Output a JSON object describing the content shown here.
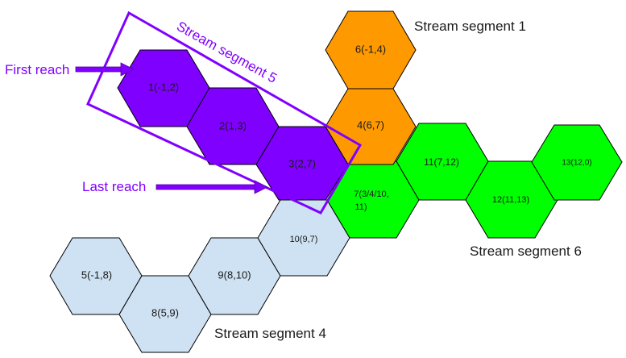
{
  "colors": {
    "purple": "#8000ff",
    "purple_dark": "#7a00e6",
    "orange": "#ff9900",
    "green": "#00ff00",
    "lightblue": "#cfe2f3",
    "stroke": "#000000"
  },
  "segments": {
    "seg1": "Stream segment 1",
    "seg4": "Stream segment 4",
    "seg5": "Stream segment 5",
    "seg6": "Stream segment 6"
  },
  "annotations": {
    "first_reach": "First reach",
    "last_reach": "Last reach"
  },
  "hexes": {
    "h1": "1(-1,2)",
    "h2": "2(1,3)",
    "h3": "3(2,7)",
    "h4": "4(6,7)",
    "h5": "5(-1,8)",
    "h6": "6(-1,4)",
    "h7a": "7(3/4/10,",
    "h7b": "11)",
    "h8": "8(5,9)",
    "h9": "9(8,10)",
    "h10": "10(9,7)",
    "h11": "11(7,12)",
    "h12": "12(11,13)",
    "h13": "13(12,0)"
  }
}
